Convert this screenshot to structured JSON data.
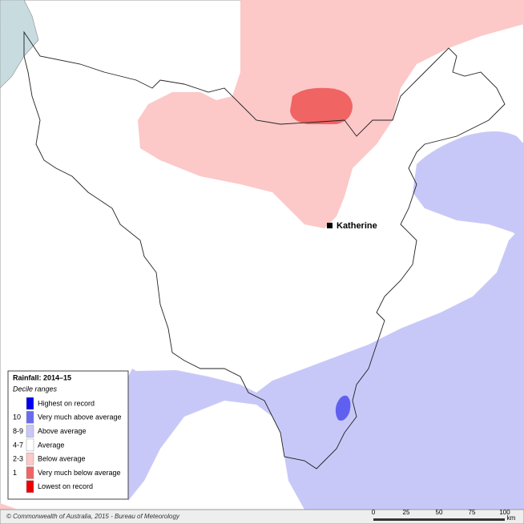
{
  "legend": {
    "title": "Rainfall: 2014–15",
    "subtitle": "Decile ranges",
    "items": [
      {
        "label": "Highest on record",
        "color": "#0000ee"
      },
      {
        "code": "10",
        "label": "Very much above average",
        "color": "#6a6af0"
      },
      {
        "code": "8-9",
        "label": "Above average",
        "color": "#c8c8f8"
      },
      {
        "code": "4-7",
        "label": "Average",
        "color": "#ffffff"
      },
      {
        "code": "2-3",
        "label": "Below average",
        "color": "#fcc8c8"
      },
      {
        "code": "1",
        "label": "Very much below average",
        "color": "#f06464"
      },
      {
        "label": "Lowest on record",
        "color": "#ee0000"
      }
    ]
  },
  "place": "Katherine",
  "copyright": "© Commonwealth of Australia, 2015 - Bureau of Meteorology",
  "scale": {
    "ticks": [
      "0",
      "25",
      "50",
      "75",
      "100"
    ],
    "unit": "km"
  }
}
